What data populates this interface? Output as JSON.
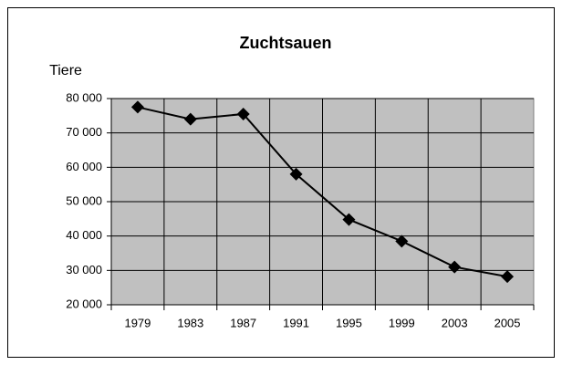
{
  "chart_data": {
    "type": "line",
    "title": "Zuchtsauen",
    "y_label": "Tiere",
    "categories": [
      "1979",
      "1983",
      "1987",
      "1991",
      "1995",
      "1999",
      "2003",
      "2005"
    ],
    "values": [
      77500,
      74000,
      75500,
      58000,
      44800,
      38500,
      31000,
      28200
    ],
    "color": "#000000",
    "plot_background": "#c0c0c0",
    "ylim": [
      20000,
      80000
    ],
    "yticks": [
      {
        "value": 20000,
        "label": "20 000"
      },
      {
        "value": 30000,
        "label": "30 000"
      },
      {
        "value": 40000,
        "label": "40 000"
      },
      {
        "value": 50000,
        "label": "50 000"
      },
      {
        "value": 60000,
        "label": "60 000"
      },
      {
        "value": 70000,
        "label": "70 000"
      },
      {
        "value": 80000,
        "label": "80 000"
      }
    ],
    "grid": true,
    "marker": "diamond"
  }
}
